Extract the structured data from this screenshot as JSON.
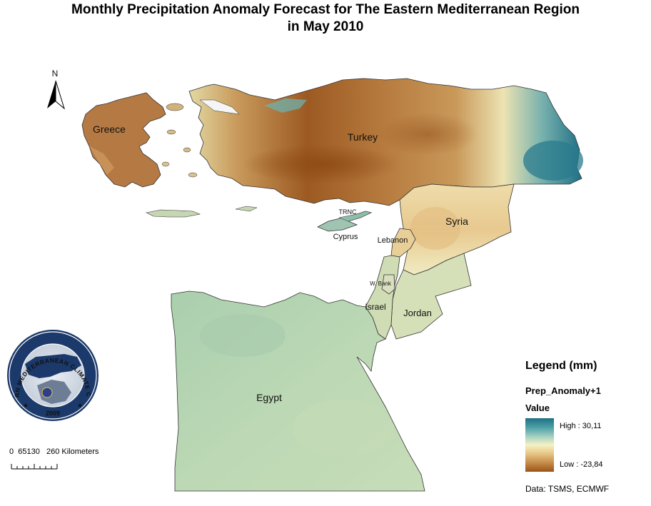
{
  "title": {
    "line1": "Monthly Precipitation Anomaly Forecast for  The Eastern Mediterranean Region",
    "line2": "in May 2010"
  },
  "north_arrow": {
    "label": "N"
  },
  "map_labels": {
    "greece": "Greece",
    "turkey": "Turkey",
    "syria": "Syria",
    "trnc": "TRNC",
    "cyprus": "Cyprus",
    "lebanon": "Lebanon",
    "west_bank": "W. Bank",
    "israel": "Israel",
    "jordan": "Jordan",
    "egypt": "Egypt"
  },
  "logo": {
    "ring_text": "EASTERN MEDITERRANEAN CLIMATE CENTRE",
    "year": "2009"
  },
  "scale_bar": {
    "text": "0  65130   260 Kilometers"
  },
  "legend": {
    "title": "Legend (mm)",
    "field": "Prep_Anomaly+1",
    "value_label": "Value",
    "high": "High : 30,11",
    "low": "Low : -23,84",
    "high_value": 30.11,
    "low_value": -23.84
  },
  "credits": "Data:  TSMS, ECMWF",
  "colors": {
    "wet": "#1f6f86",
    "neutral": "#f6f1c4",
    "dry": "#9b5318",
    "egypt_base": "#b9d6b2"
  }
}
